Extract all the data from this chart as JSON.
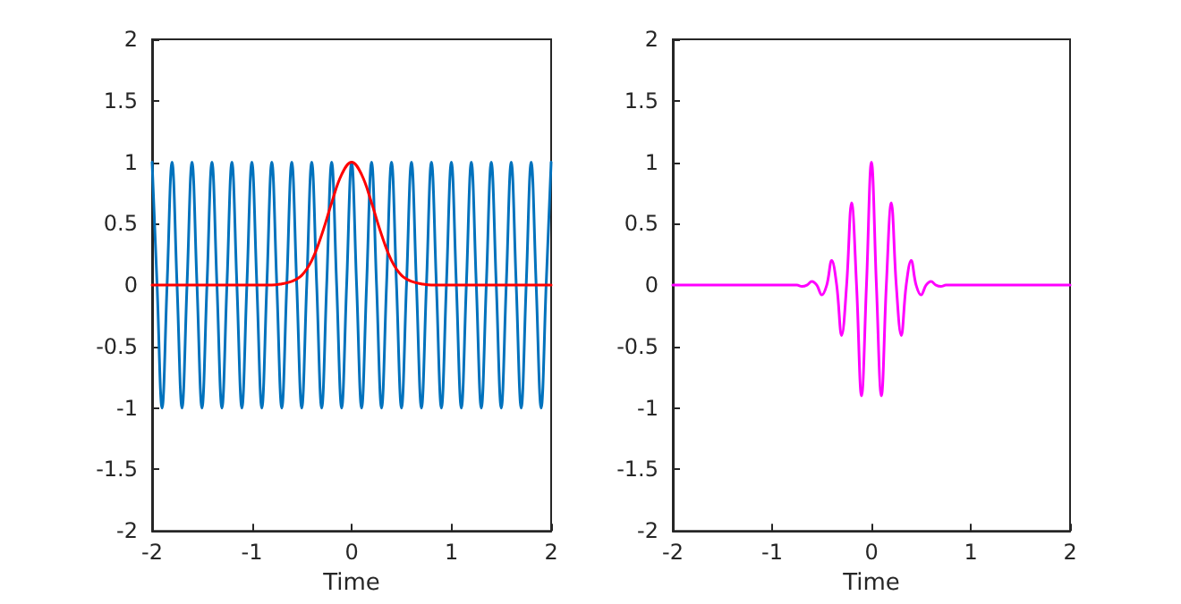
{
  "chart_data": [
    {
      "type": "line",
      "xlabel": "Time",
      "xlim": [
        -2,
        2
      ],
      "xticks": [
        -2,
        -1,
        0,
        1,
        2
      ],
      "ylim": [
        -2,
        2
      ],
      "yticks": [
        -2,
        -1.5,
        -1,
        -0.5,
        0,
        0.5,
        1,
        1.5,
        2
      ],
      "marker": "none",
      "line_style": "solid",
      "series": [
        {
          "color": "#0072bd",
          "x": [
            -2,
            -1.95,
            -1.9,
            -1.85,
            -1.8,
            -1.75,
            -1.7,
            -1.65,
            -1.6,
            -1.55,
            -1.5,
            -1.45,
            -1.4,
            -1.35,
            -1.3,
            -1.25,
            -1.2,
            -1.15,
            -1.1,
            -1.05,
            -1,
            -0.95,
            -0.9,
            -0.85,
            -0.8,
            -0.75,
            -0.7,
            -0.65,
            -0.6,
            -0.55,
            -0.5,
            -0.45,
            -0.4,
            -0.35,
            -0.3,
            -0.25,
            -0.2,
            -0.15,
            -0.1,
            -0.05,
            0,
            0.05,
            0.1,
            0.15,
            0.2,
            0.25,
            0.3,
            0.35,
            0.4,
            0.45,
            0.5,
            0.55,
            0.6,
            0.65,
            0.7,
            0.75,
            0.8,
            0.85,
            0.9,
            0.95,
            1,
            1.05,
            1.1,
            1.15,
            1.2,
            1.25,
            1.3,
            1.35,
            1.4,
            1.45,
            1.5,
            1.55,
            1.6,
            1.65,
            1.7,
            1.75,
            1.8,
            1.85,
            1.9,
            1.95,
            2
          ],
          "values": [
            1,
            0,
            -1,
            0,
            1,
            0,
            -1,
            0,
            1,
            0,
            -1,
            0,
            1,
            0,
            -1,
            0,
            1,
            0,
            -1,
            0,
            1,
            0,
            -1,
            0,
            1,
            0,
            -1,
            0,
            1,
            0,
            -1,
            0,
            1,
            0,
            -1,
            0,
            1,
            0,
            -1,
            0,
            1,
            0,
            -1,
            0,
            1,
            0,
            -1,
            0,
            1,
            0,
            -1,
            0,
            1,
            0,
            -1,
            0,
            1,
            0,
            -1,
            0,
            1,
            0,
            -1,
            0,
            1,
            0,
            -1,
            0,
            1,
            0,
            -1,
            0,
            1,
            0,
            -1,
            0,
            1,
            0,
            -1,
            0,
            1
          ]
        },
        {
          "color": "#ff0000",
          "x": [
            -2,
            -0.8,
            -0.7,
            -0.6,
            -0.5,
            -0.4,
            -0.3,
            -0.2,
            -0.1,
            0,
            0.1,
            0.2,
            0.3,
            0.4,
            0.5,
            0.6,
            0.7,
            0.8,
            2
          ],
          "values": [
            0,
            0,
            0.01,
            0.03,
            0.08,
            0.2,
            0.41,
            0.67,
            0.9,
            1,
            0.9,
            0.67,
            0.41,
            0.2,
            0.08,
            0.03,
            0.01,
            0,
            0
          ]
        }
      ]
    },
    {
      "type": "line",
      "xlabel": "Time",
      "xlim": [
        -2,
        2
      ],
      "xticks": [
        -2,
        -1,
        0,
        1,
        2
      ],
      "ylim": [
        -2,
        2
      ],
      "yticks": [
        -2,
        -1.5,
        -1,
        -0.5,
        0,
        0.5,
        1,
        1.5,
        2
      ],
      "marker": "none",
      "line_style": "solid",
      "series": [
        {
          "color": "#ff00ff",
          "x": [
            -2,
            -0.8,
            -0.75,
            -0.7,
            -0.65,
            -0.6,
            -0.55,
            -0.5,
            -0.45,
            -0.4,
            -0.35,
            -0.3,
            -0.25,
            -0.2,
            -0.15,
            -0.1,
            -0.05,
            0,
            0.05,
            0.1,
            0.15,
            0.2,
            0.25,
            0.3,
            0.35,
            0.4,
            0.45,
            0.5,
            0.55,
            0.6,
            0.65,
            0.7,
            0.75,
            0.8,
            2
          ],
          "values": [
            0,
            0,
            0,
            -0.01,
            0,
            0.03,
            0,
            -0.08,
            0,
            0.2,
            0,
            -0.41,
            0,
            0.67,
            0,
            -0.9,
            0,
            1,
            0,
            -0.9,
            0,
            0.67,
            0,
            -0.41,
            0,
            0.2,
            0,
            -0.08,
            0,
            0.03,
            0,
            -0.01,
            0,
            0,
            0
          ]
        }
      ]
    }
  ]
}
